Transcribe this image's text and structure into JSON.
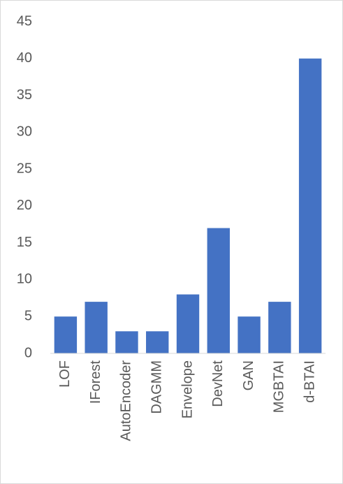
{
  "chart_data": {
    "type": "bar",
    "categories": [
      "LOF",
      "IForest",
      "AutoEncoder",
      "DAGMM",
      "Envelope",
      "DevNet",
      "GAN",
      "MGBTAI",
      "d-BTAI"
    ],
    "values": [
      5,
      7,
      3,
      3,
      8,
      17,
      5,
      7,
      40
    ],
    "color": "#4472c4",
    "ylim": [
      0,
      45
    ],
    "yticks": [
      0,
      5,
      10,
      15,
      20,
      25,
      30,
      35,
      40,
      45
    ],
    "grid": false
  }
}
